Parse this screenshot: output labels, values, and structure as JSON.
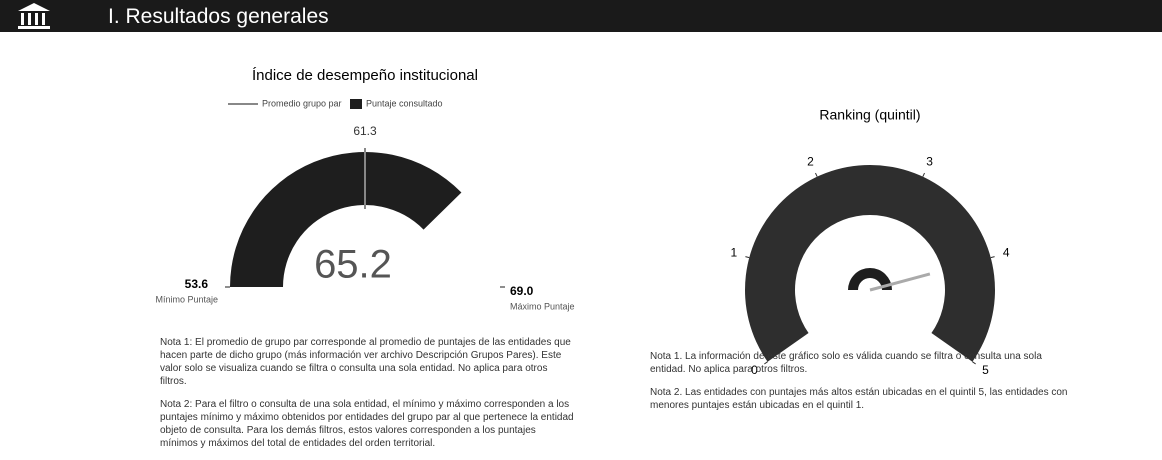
{
  "header": {
    "title": "I. Resultados generales"
  },
  "chart_data": [
    {
      "type": "gauge",
      "title": "Índice de desempeño institucional",
      "series": [
        {
          "name": "Promedio grupo par",
          "color": "#888888",
          "values": [
            61.3
          ]
        },
        {
          "name": "Puntaje consultado",
          "color": "#1e1e1e",
          "values": [
            65.2
          ]
        }
      ],
      "ylim": [
        53.6,
        69
      ],
      "yticks": [
        53.6,
        {
          "value": 69,
          "label": "69.0"
        }
      ],
      "ytick_captions": [
        "Mínimo Puntaje",
        "Máximo Puntaje"
      ]
    },
    {
      "type": "dial",
      "title": "Ranking (quintil)",
      "values": [
        4
      ],
      "color": "#2e2e2e",
      "ylim": [
        0,
        5
      ],
      "yticks": [
        0,
        1,
        2,
        3,
        4,
        5
      ]
    }
  ],
  "notes_left": [
    "Nota 1: El promedio de grupo par corresponde al promedio de puntajes de las entidades que hacen parte de dicho grupo (más información ver archivo Descripción Grupos Pares). Este valor solo se visualiza cuando se filtra o consulta una sola entidad. No aplica para otros filtros.",
    "Nota 2: Para el filtro o consulta de una sola entidad, el mínimo y máximo corresponden a los puntajes mínimo y máximo obtenidos por entidades del grupo par al que pertenece la entidad objeto de consulta. Para los demás filtros, estos valores corresponden a los puntajes mínimos y máximos del total de entidades del orden territorial."
  ],
  "notes_right": [
    "Nota 1. La información de este gráfico solo es válida cuando se filtra o consulta una sola entidad. No aplica para otros filtros.",
    "Nota 2. Las entidades con puntajes más altos están ubicadas en el quintil 5, las entidades con menores puntajes están ubicadas en el quintil 1."
  ]
}
